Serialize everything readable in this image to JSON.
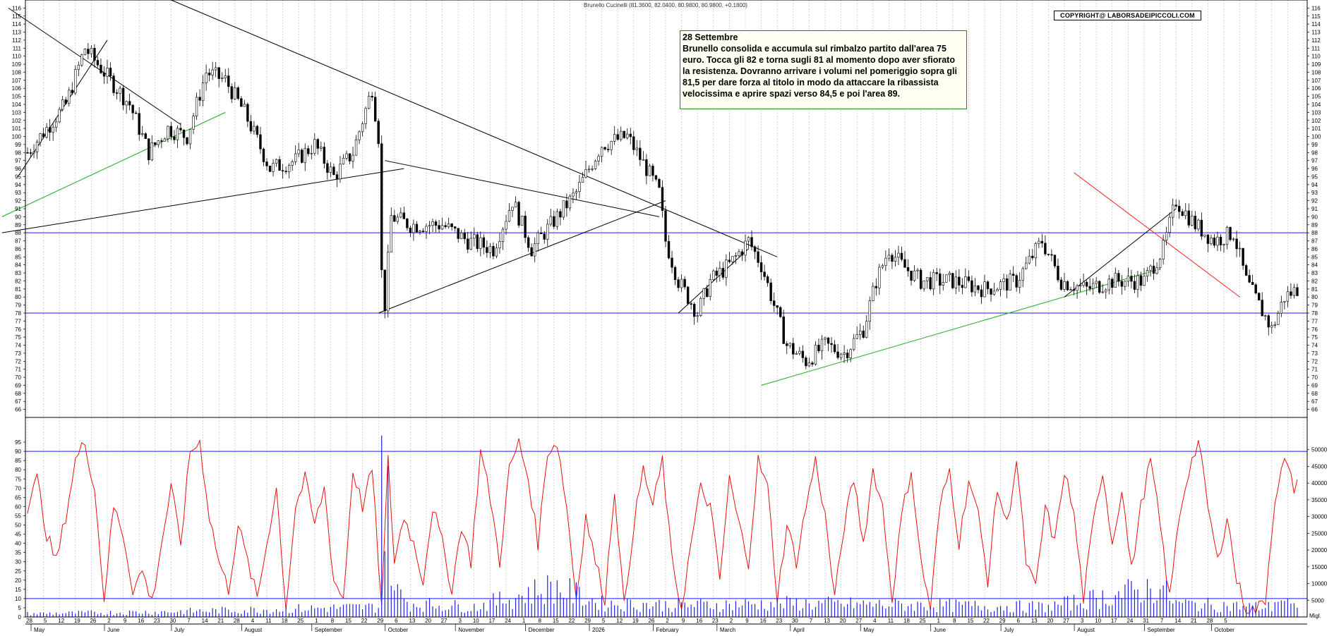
{
  "chart_data": {
    "type": "candlestick",
    "title": "Brunello Cucinelli (81.3600, 82.0400, 80.9800, 80.9800, +0.1800)",
    "copyright": "COPYRIGHT@ LABORSADEIPICCOLI.COM",
    "annotation": {
      "date": "28 Settembre",
      "text": "Brunello consolida e accumula sul rimbalzo partito dall'area 75 euro. Tocca gli 82 e torna sugli 81 al momento dopo aver sfiorato la resistenza. Dovranno arrivare i volumi nel pomeriggio sopra gli 81,5 per dare forza al titolo in modo da attaccare la ribassista velocissima e aprire spazi verso 84,5 e poi l'area 89."
    },
    "price_axis": {
      "min": 65,
      "max": 117,
      "ticks_from": 66,
      "ticks_to": 116,
      "step": 1
    },
    "horizontal_levels": [
      88,
      78
    ],
    "oscillator_axis": {
      "min": 0,
      "max": 100,
      "ticks": [
        0,
        5,
        10,
        15,
        20,
        25,
        30,
        35,
        40,
        45,
        50,
        55,
        60,
        65,
        70,
        75,
        80,
        85,
        90,
        95
      ],
      "levels": [
        10,
        90
      ]
    },
    "volume_axis": {
      "min": 0,
      "max": 55000,
      "ticks": [
        5000,
        10000,
        15000,
        20000,
        25000,
        30000,
        35000,
        40000,
        45000,
        50000
      ],
      "unit_label": "Migl."
    },
    "months": [
      "May",
      "June",
      "July",
      "August",
      "September",
      "October",
      "November",
      "December",
      "2026",
      "February",
      "March",
      "April",
      "May",
      "June",
      "July",
      "August",
      "September",
      "October"
    ],
    "day_labels": [
      "28",
      "5",
      "12",
      "19",
      "26",
      "2",
      "9",
      "16",
      "23",
      "30",
      "7",
      "14",
      "21",
      "28",
      "4",
      "11",
      "18",
      "25",
      "1",
      "8",
      "15",
      "22",
      "29",
      "6",
      "13",
      "20",
      "27",
      "3",
      "10",
      "17",
      "24",
      "1",
      "8",
      "15",
      "22",
      "29",
      "5",
      "12",
      "19",
      "26",
      "2",
      "9",
      "16",
      "23",
      "2",
      "9",
      "16",
      "23",
      "30",
      "7",
      "13",
      "20",
      "27",
      "4",
      "11",
      "18",
      "25",
      "1",
      "8",
      "15",
      "22",
      "29",
      "6",
      "13",
      "20",
      "27",
      "3",
      "10",
      "17",
      "24",
      "31",
      "7",
      "14",
      "21",
      "28",
      "5"
    ],
    "price_waypoints": [
      [
        0,
        98
      ],
      [
        6,
        101
      ],
      [
        12,
        104
      ],
      [
        18,
        111
      ],
      [
        24,
        108
      ],
      [
        32,
        104
      ],
      [
        38,
        98
      ],
      [
        44,
        101
      ],
      [
        50,
        100
      ],
      [
        56,
        108
      ],
      [
        62,
        107
      ],
      [
        68,
        103
      ],
      [
        76,
        96
      ],
      [
        84,
        97
      ],
      [
        90,
        99
      ],
      [
        96,
        95
      ],
      [
        102,
        98
      ],
      [
        108,
        106
      ],
      [
        110,
        100
      ],
      [
        111,
        83
      ],
      [
        112,
        79
      ],
      [
        114,
        90
      ],
      [
        120,
        89
      ],
      [
        130,
        89
      ],
      [
        138,
        87
      ],
      [
        146,
        86
      ],
      [
        152,
        92
      ],
      [
        158,
        86
      ],
      [
        164,
        89
      ],
      [
        172,
        93
      ],
      [
        180,
        99
      ],
      [
        188,
        100
      ],
      [
        194,
        96
      ],
      [
        198,
        93
      ],
      [
        200,
        87
      ],
      [
        204,
        82
      ],
      [
        210,
        78
      ],
      [
        214,
        82
      ],
      [
        220,
        84
      ],
      [
        226,
        87
      ],
      [
        230,
        84
      ],
      [
        234,
        79
      ],
      [
        238,
        74
      ],
      [
        244,
        72
      ],
      [
        250,
        74
      ],
      [
        256,
        73
      ],
      [
        262,
        76
      ],
      [
        266,
        82
      ],
      [
        270,
        86
      ],
      [
        274,
        84
      ],
      [
        280,
        82
      ],
      [
        290,
        82
      ],
      [
        300,
        81
      ],
      [
        310,
        82
      ],
      [
        318,
        87
      ],
      [
        324,
        82
      ],
      [
        332,
        81
      ],
      [
        340,
        82
      ],
      [
        350,
        82
      ],
      [
        356,
        86
      ],
      [
        360,
        92
      ],
      [
        366,
        89
      ],
      [
        372,
        87
      ],
      [
        378,
        88
      ],
      [
        382,
        82
      ],
      [
        386,
        79
      ],
      [
        390,
        76
      ],
      [
        394,
        80
      ],
      [
        398,
        81
      ]
    ],
    "oscillator_waypoints": [
      [
        0,
        60
      ],
      [
        3,
        75
      ],
      [
        6,
        45
      ],
      [
        9,
        30
      ],
      [
        12,
        55
      ],
      [
        15,
        85
      ],
      [
        18,
        95
      ],
      [
        21,
        70
      ],
      [
        24,
        10
      ],
      [
        27,
        60
      ],
      [
        30,
        45
      ],
      [
        33,
        15
      ],
      [
        36,
        25
      ],
      [
        39,
        8
      ],
      [
        42,
        40
      ],
      [
        45,
        70
      ],
      [
        48,
        40
      ],
      [
        51,
        90
      ],
      [
        54,
        95
      ],
      [
        57,
        55
      ],
      [
        60,
        30
      ],
      [
        63,
        15
      ],
      [
        66,
        50
      ],
      [
        69,
        30
      ],
      [
        72,
        10
      ],
      [
        75,
        40
      ],
      [
        78,
        70
      ],
      [
        81,
        5
      ],
      [
        84,
        60
      ],
      [
        87,
        75
      ],
      [
        90,
        50
      ],
      [
        93,
        70
      ],
      [
        96,
        20
      ],
      [
        99,
        10
      ],
      [
        102,
        80
      ],
      [
        105,
        60
      ],
      [
        108,
        80
      ],
      [
        111,
        5
      ],
      [
        113,
        85
      ],
      [
        115,
        30
      ],
      [
        118,
        55
      ],
      [
        121,
        40
      ],
      [
        124,
        20
      ],
      [
        127,
        60
      ],
      [
        130,
        40
      ],
      [
        133,
        15
      ],
      [
        136,
        50
      ],
      [
        139,
        30
      ],
      [
        142,
        90
      ],
      [
        145,
        65
      ],
      [
        148,
        30
      ],
      [
        151,
        80
      ],
      [
        154,
        95
      ],
      [
        157,
        75
      ],
      [
        160,
        40
      ],
      [
        163,
        90
      ],
      [
        166,
        95
      ],
      [
        169,
        60
      ],
      [
        172,
        10
      ],
      [
        175,
        55
      ],
      [
        178,
        30
      ],
      [
        181,
        10
      ],
      [
        184,
        70
      ],
      [
        187,
        5
      ],
      [
        190,
        50
      ],
      [
        193,
        80
      ],
      [
        196,
        60
      ],
      [
        199,
        85
      ],
      [
        202,
        30
      ],
      [
        205,
        5
      ],
      [
        208,
        40
      ],
      [
        211,
        70
      ],
      [
        214,
        60
      ],
      [
        217,
        20
      ],
      [
        220,
        75
      ],
      [
        223,
        50
      ],
      [
        226,
        30
      ],
      [
        229,
        85
      ],
      [
        232,
        70
      ],
      [
        235,
        10
      ],
      [
        238,
        50
      ],
      [
        241,
        30
      ],
      [
        244,
        60
      ],
      [
        247,
        85
      ],
      [
        250,
        55
      ],
      [
        253,
        10
      ],
      [
        256,
        50
      ],
      [
        259,
        75
      ],
      [
        262,
        40
      ],
      [
        265,
        80
      ],
      [
        268,
        60
      ],
      [
        271,
        10
      ],
      [
        274,
        55
      ],
      [
        277,
        80
      ],
      [
        280,
        30
      ],
      [
        283,
        5
      ],
      [
        286,
        60
      ],
      [
        289,
        80
      ],
      [
        292,
        40
      ],
      [
        295,
        75
      ],
      [
        298,
        55
      ],
      [
        301,
        20
      ],
      [
        304,
        70
      ],
      [
        307,
        50
      ],
      [
        310,
        85
      ],
      [
        313,
        30
      ],
      [
        316,
        15
      ],
      [
        319,
        60
      ],
      [
        322,
        40
      ],
      [
        325,
        80
      ],
      [
        328,
        55
      ],
      [
        331,
        10
      ],
      [
        334,
        50
      ],
      [
        337,
        80
      ],
      [
        340,
        40
      ],
      [
        343,
        70
      ],
      [
        346,
        25
      ],
      [
        349,
        60
      ],
      [
        352,
        85
      ],
      [
        355,
        50
      ],
      [
        358,
        10
      ],
      [
        361,
        55
      ],
      [
        364,
        80
      ],
      [
        367,
        95
      ],
      [
        370,
        60
      ],
      [
        373,
        30
      ],
      [
        376,
        55
      ],
      [
        379,
        20
      ],
      [
        382,
        5
      ],
      [
        385,
        3
      ],
      [
        388,
        10
      ],
      [
        391,
        65
      ],
      [
        394,
        85
      ],
      [
        397,
        70
      ],
      [
        398,
        75
      ]
    ],
    "volume_waypoints": [
      [
        0,
        1000
      ],
      [
        40,
        1500
      ],
      [
        110,
        3000
      ],
      [
        111,
        52000
      ],
      [
        112,
        34000
      ],
      [
        113,
        30000
      ],
      [
        114,
        20000
      ],
      [
        115,
        8000
      ],
      [
        120,
        4000
      ],
      [
        140,
        3000
      ],
      [
        165,
        9000
      ],
      [
        180,
        4000
      ],
      [
        205,
        3500
      ],
      [
        240,
        4000
      ],
      [
        280,
        3500
      ],
      [
        320,
        3000
      ],
      [
        355,
        9000
      ],
      [
        360,
        4000
      ],
      [
        385,
        3000
      ],
      [
        390,
        3000
      ],
      [
        392,
        6000
      ],
      [
        398,
        2000
      ]
    ]
  }
}
